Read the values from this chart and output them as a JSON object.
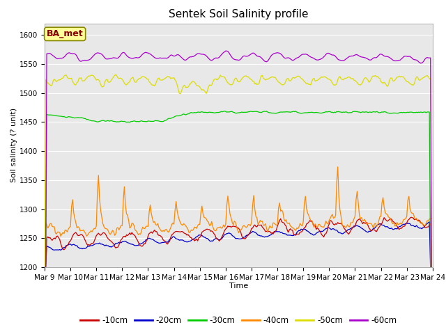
{
  "title": "Sentek Soil Salinity profile",
  "xlabel": "Time",
  "ylabel": "Soil salinity (? unit)",
  "ylim": [
    1200,
    1620
  ],
  "yticks": [
    1200,
    1250,
    1300,
    1350,
    1400,
    1450,
    1500,
    1550,
    1600
  ],
  "legend_labels": [
    "-10cm",
    "-20cm",
    "-30cm",
    "-40cm",
    "-50cm",
    "-60cm"
  ],
  "legend_colors": [
    "#cc0000",
    "#0000cc",
    "#00cc00",
    "#ff8800",
    "#dddd00",
    "#aa00cc"
  ],
  "bg_color": "#e8e8e8",
  "grid_color": "#ffffff",
  "annotation_text": "BA_met",
  "annotation_color": "#880000",
  "annotation_bg": "#ffff99",
  "annotation_edge": "#888800",
  "n_points": 360,
  "xtick_labels": [
    "Mar 9",
    "Mar 10",
    "Mar 11",
    "Mar 12",
    "Mar 13",
    "Mar 14",
    "Mar 15",
    "Mar 16",
    "Mar 17",
    "Mar 18",
    "Mar 19",
    "Mar 20",
    "Mar 21",
    "Mar 22",
    "Mar 23",
    "Mar 24"
  ],
  "title_fontsize": 11,
  "label_fontsize": 8,
  "tick_fontsize": 7.5,
  "legend_fontsize": 8.5,
  "figwidth": 6.4,
  "figheight": 4.8,
  "dpi": 100
}
